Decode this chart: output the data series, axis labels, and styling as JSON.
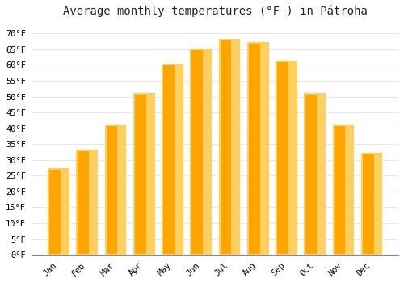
{
  "title": "Average monthly temperatures (°F ) in Pátroha",
  "months": [
    "Jan",
    "Feb",
    "Mar",
    "Apr",
    "May",
    "Jun",
    "Jul",
    "Aug",
    "Sep",
    "Oct",
    "Nov",
    "Dec"
  ],
  "values": [
    27,
    33,
    41,
    51,
    60,
    65,
    68,
    67,
    61,
    51,
    41,
    32
  ],
  "bar_color_main": "#FFA500",
  "bar_color_light": "#FFD060",
  "background_color": "#ffffff",
  "grid_color": "#e8e8e8",
  "ylim": [
    0,
    73
  ],
  "yticks": [
    0,
    5,
    10,
    15,
    20,
    25,
    30,
    35,
    40,
    45,
    50,
    55,
    60,
    65,
    70
  ],
  "title_fontsize": 10,
  "tick_fontsize": 7.5,
  "font_family": "monospace"
}
